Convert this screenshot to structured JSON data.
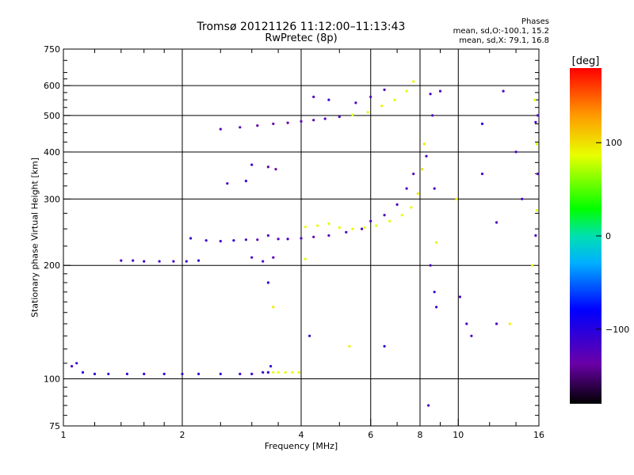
{
  "title": "Tromsø 20121126 11:12:00–11:13:43",
  "subtitle": "RwPretec (8p)",
  "phases": {
    "heading": "Phases",
    "line_o": "mean, sd,O:-100.1, 15.2",
    "line_x": "mean, sd,X:  79.1, 16.8"
  },
  "colorbar": {
    "unit": "[deg]",
    "ticks": [
      {
        "value": 100,
        "label": "100"
      },
      {
        "value": 0,
        "label": "0"
      },
      {
        "value": -100,
        "label": "−100"
      }
    ],
    "range": [
      -180,
      180
    ]
  },
  "chart_data": {
    "type": "scatter",
    "title": "Tromsø 20121126 11:12:00–11:13:43",
    "subtitle": "RwPretec (8p)",
    "xlabel": "Frequency [MHz]",
    "ylabel": "Stationary phase Virtual Height [km]",
    "xscale": "log",
    "yscale": "log",
    "xlim": [
      1,
      16
    ],
    "ylim": [
      75,
      750
    ],
    "grid": true,
    "x_ticks": [
      {
        "value": 1,
        "label": "1"
      },
      {
        "value": 2,
        "label": "2"
      },
      {
        "value": 4,
        "label": "4"
      },
      {
        "value": 6,
        "label": "6"
      },
      {
        "value": 8,
        "label": "8"
      },
      {
        "value": 10,
        "label": "10"
      },
      {
        "value": 16,
        "label": "16"
      }
    ],
    "x_grid": [
      1,
      2,
      4,
      6,
      8,
      10,
      16
    ],
    "y_ticks": [
      {
        "value": 75,
        "label": "75"
      },
      {
        "value": 100,
        "label": "100"
      },
      {
        "value": 200,
        "label": "200"
      },
      {
        "value": 300,
        "label": "300"
      },
      {
        "value": 400,
        "label": "400"
      },
      {
        "value": 500,
        "label": "500"
      },
      {
        "value": 600,
        "label": "600"
      },
      {
        "value": 750,
        "label": "750"
      }
    ],
    "y_grid": [
      100,
      200,
      300,
      400,
      500,
      600
    ],
    "series": [
      {
        "points": [
          [
            1.05,
            108,
            -120
          ],
          [
            1.08,
            110,
            -110
          ],
          [
            1.12,
            104,
            -100
          ],
          [
            1.2,
            103,
            -105
          ],
          [
            1.3,
            103,
            -110
          ],
          [
            1.45,
            103,
            -110
          ],
          [
            1.6,
            103,
            -110
          ],
          [
            1.8,
            103,
            -110
          ],
          [
            2.0,
            103,
            -110
          ],
          [
            2.2,
            103,
            -110
          ],
          [
            2.5,
            103,
            -110
          ],
          [
            2.8,
            103,
            -110
          ],
          [
            3.0,
            103,
            -110
          ],
          [
            3.2,
            104,
            -110
          ],
          [
            3.3,
            104,
            -105
          ],
          [
            3.35,
            108,
            -110
          ],
          [
            3.4,
            104,
            85
          ],
          [
            3.5,
            104,
            85
          ],
          [
            3.65,
            104,
            85
          ],
          [
            3.8,
            104,
            85
          ],
          [
            3.95,
            104,
            85
          ],
          [
            1.4,
            206,
            -115
          ],
          [
            1.5,
            206,
            -115
          ],
          [
            1.6,
            205,
            -115
          ],
          [
            1.75,
            205,
            -115
          ],
          [
            1.9,
            205,
            -115
          ],
          [
            2.05,
            205,
            -115
          ],
          [
            2.2,
            206,
            -105
          ],
          [
            2.1,
            236,
            -110
          ],
          [
            2.3,
            233,
            -115
          ],
          [
            2.5,
            232,
            -115
          ],
          [
            2.7,
            233,
            -105
          ],
          [
            2.9,
            234,
            -120
          ],
          [
            3.1,
            234,
            -125
          ],
          [
            3.3,
            240,
            -130
          ],
          [
            3.5,
            235,
            -125
          ],
          [
            3.7,
            235,
            -120
          ],
          [
            4.0,
            236,
            -120
          ],
          [
            4.3,
            238,
            -130
          ],
          [
            4.7,
            240,
            -130
          ],
          [
            5.2,
            245,
            -120
          ],
          [
            5.7,
            250,
            -115
          ],
          [
            6.2,
            255,
            85
          ],
          [
            6.7,
            262,
            85
          ],
          [
            7.2,
            272,
            85
          ],
          [
            7.6,
            285,
            90
          ],
          [
            7.9,
            310,
            95
          ],
          [
            8.1,
            360,
            100
          ],
          [
            8.2,
            420,
            95
          ],
          [
            4.1,
            253,
            85
          ],
          [
            4.4,
            255,
            85
          ],
          [
            4.7,
            258,
            85
          ],
          [
            5.0,
            252,
            85
          ],
          [
            5.4,
            250,
            85
          ],
          [
            5.8,
            252,
            85
          ],
          [
            6.0,
            262,
            -125
          ],
          [
            6.5,
            272,
            -125
          ],
          [
            7.0,
            290,
            -120
          ],
          [
            7.4,
            320,
            -120
          ],
          [
            7.7,
            350,
            -125
          ],
          [
            2.5,
            460,
            -130
          ],
          [
            2.8,
            465,
            -130
          ],
          [
            3.1,
            470,
            -135
          ],
          [
            3.4,
            475,
            -135
          ],
          [
            3.7,
            478,
            -135
          ],
          [
            4.0,
            482,
            -130
          ],
          [
            4.3,
            486,
            -130
          ],
          [
            4.6,
            490,
            -125
          ],
          [
            5.0,
            496,
            -125
          ],
          [
            5.4,
            502,
            85
          ],
          [
            5.9,
            510,
            85
          ],
          [
            6.4,
            530,
            90
          ],
          [
            6.9,
            550,
            85
          ],
          [
            7.4,
            580,
            85
          ],
          [
            7.7,
            615,
            90
          ],
          [
            5.5,
            540,
            -125
          ],
          [
            6.0,
            560,
            -130
          ],
          [
            6.5,
            585,
            -125
          ],
          [
            4.3,
            560,
            -125
          ],
          [
            4.7,
            550,
            -110
          ],
          [
            2.9,
            335,
            -110
          ],
          [
            3.0,
            370,
            -110
          ],
          [
            3.3,
            365,
            -140
          ],
          [
            3.45,
            360,
            -140
          ],
          [
            2.6,
            330,
            -120
          ],
          [
            3.0,
            210,
            -125
          ],
          [
            3.2,
            205,
            -120
          ],
          [
            3.4,
            210,
            -130
          ],
          [
            4.1,
            208,
            85
          ],
          [
            3.3,
            180,
            -100
          ],
          [
            3.4,
            155,
            95
          ],
          [
            4.2,
            130,
            -110
          ],
          [
            5.3,
            122,
            90
          ],
          [
            6.5,
            122,
            -110
          ],
          [
            8.5,
            570,
            -120
          ],
          [
            8.6,
            500,
            -120
          ],
          [
            9.0,
            580,
            -120
          ],
          [
            8.3,
            390,
            -120
          ],
          [
            8.7,
            320,
            -120
          ],
          [
            8.8,
            230,
            90
          ],
          [
            8.5,
            200,
            -120
          ],
          [
            8.7,
            170,
            -110
          ],
          [
            8.8,
            155,
            -120
          ],
          [
            8.4,
            85,
            -120
          ],
          [
            9.9,
            300,
            90
          ],
          [
            10.1,
            165,
            -120
          ],
          [
            10.5,
            140,
            -120
          ],
          [
            10.8,
            130,
            -120
          ],
          [
            11.5,
            475,
            -100
          ],
          [
            11.5,
            350,
            -120
          ],
          [
            12.5,
            260,
            -120
          ],
          [
            12.5,
            140,
            -120
          ],
          [
            13.0,
            580,
            -120
          ],
          [
            13.5,
            140,
            90
          ],
          [
            15.4,
            200,
            90
          ],
          [
            15.6,
            550,
            85
          ],
          [
            15.7,
            480,
            -120
          ],
          [
            15.8,
            420,
            85
          ],
          [
            15.9,
            350,
            -120
          ],
          [
            15.8,
            280,
            85
          ],
          [
            15.7,
            240,
            -120
          ],
          [
            15.9,
            500,
            -120
          ],
          [
            14.0,
            400,
            -120
          ],
          [
            14.5,
            300,
            -120
          ]
        ]
      }
    ]
  }
}
